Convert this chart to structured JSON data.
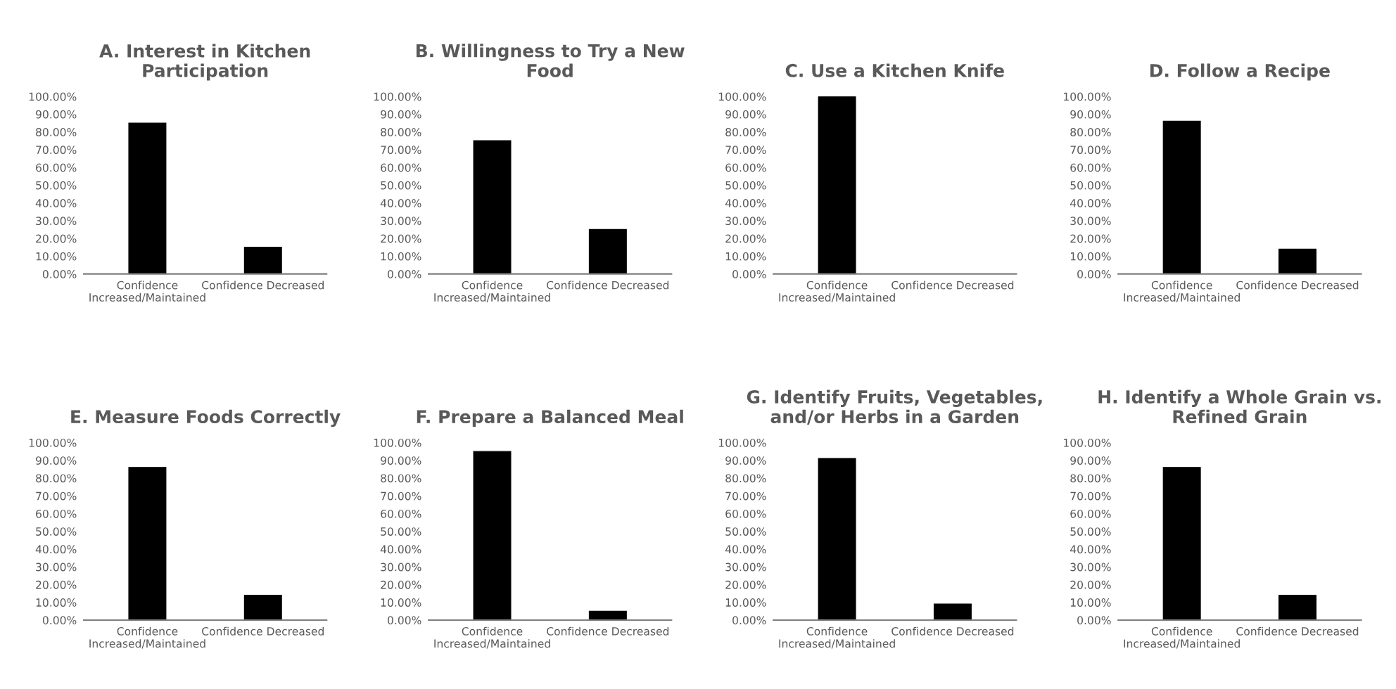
{
  "chart_data": [
    {
      "type": "bar",
      "title": "A. Interest in Kitchen\nParticipation",
      "categories": [
        "Confidence\nIncreased/Maintained",
        "Confidence Decreased"
      ],
      "values": [
        85,
        15
      ],
      "color": "#000000",
      "ylim": [
        0,
        100
      ],
      "yticks": [
        {
          "value": 0,
          "label": "0.00%"
        },
        {
          "value": 10,
          "label": "10.00%"
        },
        {
          "value": 20,
          "label": "20.00%"
        },
        {
          "value": 30,
          "label": "30.00%"
        },
        {
          "value": 40,
          "label": "40.00%"
        },
        {
          "value": 50,
          "label": "50.00%"
        },
        {
          "value": 60,
          "label": "60.00%"
        },
        {
          "value": 70,
          "label": "70.00%"
        },
        {
          "value": 80,
          "label": "80.00%"
        },
        {
          "value": 90,
          "label": "90.00%"
        },
        {
          "value": 100,
          "label": "100.00%"
        }
      ],
      "grid": false
    },
    {
      "type": "bar",
      "title": "B. Willingness to Try a New\nFood",
      "categories": [
        "Confidence\nIncreased/Maintained",
        "Confidence Decreased"
      ],
      "values": [
        75,
        25
      ],
      "color": "#000000",
      "ylim": [
        0,
        100
      ],
      "yticks": [
        {
          "value": 0,
          "label": "0.00%"
        },
        {
          "value": 10,
          "label": "10.00%"
        },
        {
          "value": 20,
          "label": "20.00%"
        },
        {
          "value": 30,
          "label": "30.00%"
        },
        {
          "value": 40,
          "label": "40.00%"
        },
        {
          "value": 50,
          "label": "50.00%"
        },
        {
          "value": 60,
          "label": "60.00%"
        },
        {
          "value": 70,
          "label": "70.00%"
        },
        {
          "value": 80,
          "label": "80.00%"
        },
        {
          "value": 90,
          "label": "90.00%"
        },
        {
          "value": 100,
          "label": "100.00%"
        }
      ],
      "grid": false
    },
    {
      "type": "bar",
      "title": "C. Use a Kitchen Knife",
      "categories": [
        "Confidence\nIncreased/Maintained",
        "Confidence Decreased"
      ],
      "values": [
        100,
        0
      ],
      "color": "#000000",
      "ylim": [
        0,
        100
      ],
      "yticks": [
        {
          "value": 0,
          "label": "0.00%"
        },
        {
          "value": 10,
          "label": "10.00%"
        },
        {
          "value": 20,
          "label": "20.00%"
        },
        {
          "value": 30,
          "label": "30.00%"
        },
        {
          "value": 40,
          "label": "40.00%"
        },
        {
          "value": 50,
          "label": "50.00%"
        },
        {
          "value": 60,
          "label": "60.00%"
        },
        {
          "value": 70,
          "label": "70.00%"
        },
        {
          "value": 80,
          "label": "80.00%"
        },
        {
          "value": 90,
          "label": "90.00%"
        },
        {
          "value": 100,
          "label": "100.00%"
        }
      ],
      "grid": false
    },
    {
      "type": "bar",
      "title": "D. Follow a Recipe",
      "categories": [
        "Confidence\nIncreased/Maintained",
        "Confidence Decreased"
      ],
      "values": [
        86,
        14
      ],
      "color": "#000000",
      "ylim": [
        0,
        100
      ],
      "yticks": [
        {
          "value": 0,
          "label": "0.00%"
        },
        {
          "value": 10,
          "label": "10.00%"
        },
        {
          "value": 20,
          "label": "20.00%"
        },
        {
          "value": 30,
          "label": "30.00%"
        },
        {
          "value": 40,
          "label": "40.00%"
        },
        {
          "value": 50,
          "label": "50.00%"
        },
        {
          "value": 60,
          "label": "60.00%"
        },
        {
          "value": 70,
          "label": "70.00%"
        },
        {
          "value": 80,
          "label": "80.00%"
        },
        {
          "value": 90,
          "label": "90.00%"
        },
        {
          "value": 100,
          "label": "100.00%"
        }
      ],
      "grid": false
    },
    {
      "type": "bar",
      "title": "E. Measure Foods Correctly",
      "categories": [
        "Confidence\nIncreased/Maintained",
        "Confidence Decreased"
      ],
      "values": [
        86,
        14
      ],
      "color": "#000000",
      "ylim": [
        0,
        100
      ],
      "yticks": [
        {
          "value": 0,
          "label": "0.00%"
        },
        {
          "value": 10,
          "label": "10.00%"
        },
        {
          "value": 20,
          "label": "20.00%"
        },
        {
          "value": 30,
          "label": "30.00%"
        },
        {
          "value": 40,
          "label": "40.00%"
        },
        {
          "value": 50,
          "label": "50.00%"
        },
        {
          "value": 60,
          "label": "60.00%"
        },
        {
          "value": 70,
          "label": "70.00%"
        },
        {
          "value": 80,
          "label": "80.00%"
        },
        {
          "value": 90,
          "label": "90.00%"
        },
        {
          "value": 100,
          "label": "100.00%"
        }
      ],
      "grid": false
    },
    {
      "type": "bar",
      "title": "F. Prepare a Balanced Meal",
      "categories": [
        "Confidence\nIncreased/Maintained",
        "Confidence Decreased"
      ],
      "values": [
        95,
        5
      ],
      "color": "#000000",
      "ylim": [
        0,
        100
      ],
      "yticks": [
        {
          "value": 0,
          "label": "0.00%"
        },
        {
          "value": 10,
          "label": "10.00%"
        },
        {
          "value": 20,
          "label": "20.00%"
        },
        {
          "value": 30,
          "label": "30.00%"
        },
        {
          "value": 40,
          "label": "40.00%"
        },
        {
          "value": 50,
          "label": "50.00%"
        },
        {
          "value": 60,
          "label": "60.00%"
        },
        {
          "value": 70,
          "label": "70.00%"
        },
        {
          "value": 80,
          "label": "80.00%"
        },
        {
          "value": 90,
          "label": "90.00%"
        },
        {
          "value": 100,
          "label": "100.00%"
        }
      ],
      "grid": false
    },
    {
      "type": "bar",
      "title": "G. Identify Fruits, Vegetables,\nand/or Herbs in a Garden",
      "categories": [
        "Confidence\nIncreased/Maintained",
        "Confidence Decreased"
      ],
      "values": [
        91,
        9
      ],
      "color": "#000000",
      "ylim": [
        0,
        100
      ],
      "yticks": [
        {
          "value": 0,
          "label": "0.00%"
        },
        {
          "value": 10,
          "label": "10.00%"
        },
        {
          "value": 20,
          "label": "20.00%"
        },
        {
          "value": 30,
          "label": "30.00%"
        },
        {
          "value": 40,
          "label": "40.00%"
        },
        {
          "value": 50,
          "label": "50.00%"
        },
        {
          "value": 60,
          "label": "60.00%"
        },
        {
          "value": 70,
          "label": "70.00%"
        },
        {
          "value": 80,
          "label": "80.00%"
        },
        {
          "value": 90,
          "label": "90.00%"
        },
        {
          "value": 100,
          "label": "100.00%"
        }
      ],
      "grid": false
    },
    {
      "type": "bar",
      "title": "H. Identify a Whole Grain vs.\nRefined Grain",
      "categories": [
        "Confidence\nIncreased/Maintained",
        "Confidence Decreased"
      ],
      "values": [
        86,
        14
      ],
      "color": "#000000",
      "ylim": [
        0,
        100
      ],
      "yticks": [
        {
          "value": 0,
          "label": "0.00%"
        },
        {
          "value": 10,
          "label": "10.00%"
        },
        {
          "value": 20,
          "label": "20.00%"
        },
        {
          "value": 30,
          "label": "30.00%"
        },
        {
          "value": 40,
          "label": "40.00%"
        },
        {
          "value": 50,
          "label": "50.00%"
        },
        {
          "value": 60,
          "label": "60.00%"
        },
        {
          "value": 70,
          "label": "70.00%"
        },
        {
          "value": 80,
          "label": "80.00%"
        },
        {
          "value": 90,
          "label": "90.00%"
        },
        {
          "value": 100,
          "label": "100.00%"
        }
      ],
      "grid": false
    }
  ]
}
